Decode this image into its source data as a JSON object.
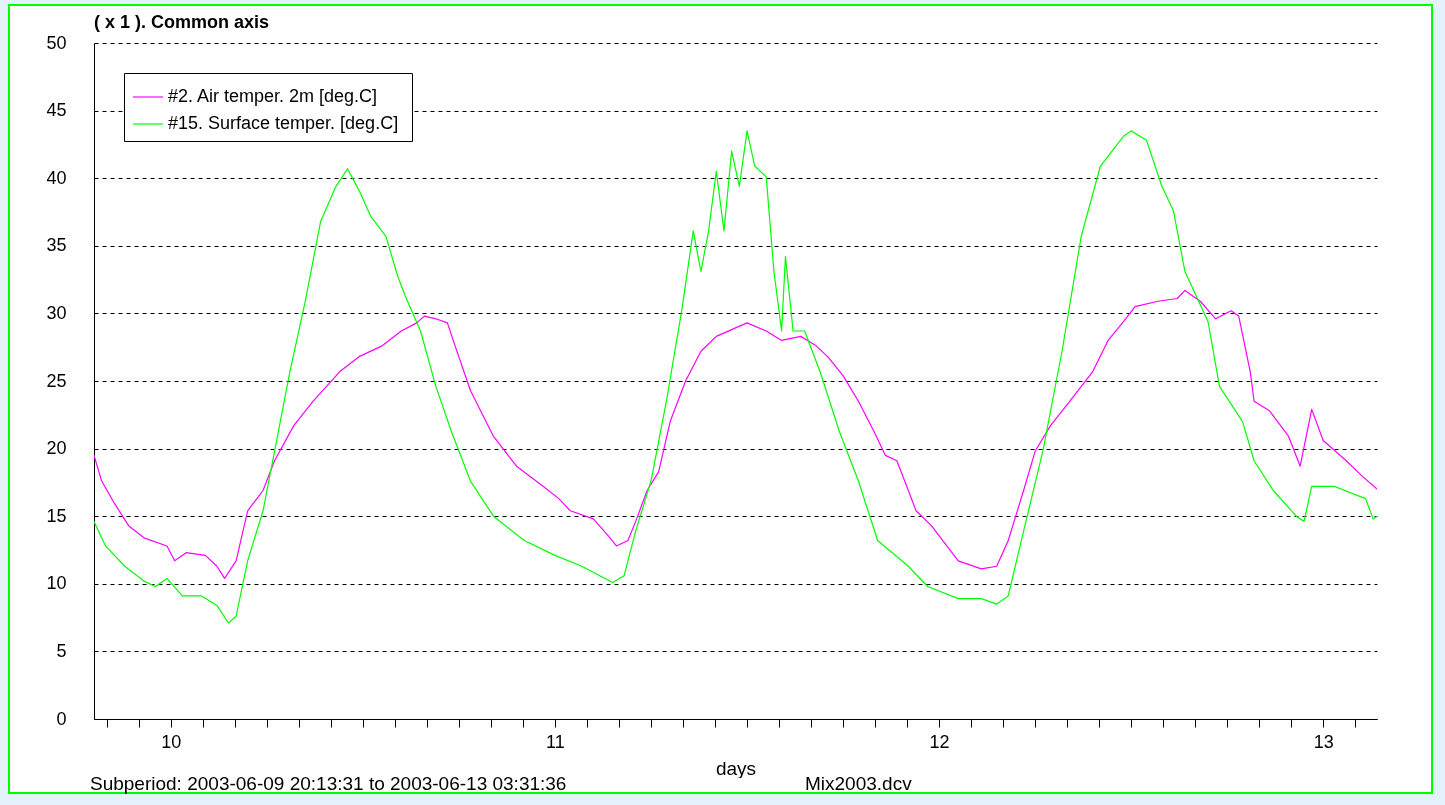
{
  "chart_data": {
    "type": "line",
    "title": "( x 1 ). Common axis",
    "xlabel": "days",
    "annotations": [
      "Subperiod: 2003-06-09 20:13:31 to 2003-06-13 03:31:36",
      "Mix2003.dcv"
    ],
    "xlim": [
      9.8,
      13.14
    ],
    "ylim": [
      0,
      50
    ],
    "yticks": [
      0,
      5,
      10,
      15,
      20,
      25,
      30,
      35,
      40,
      45,
      50
    ],
    "xticks": [
      {
        "value": 9.833,
        "label": null
      },
      {
        "value": 9.917,
        "label": null
      },
      10,
      {
        "value": 10.083,
        "label": null
      },
      {
        "value": 10.167,
        "label": null
      },
      {
        "value": 10.25,
        "label": null
      },
      {
        "value": 10.333,
        "label": null
      },
      {
        "value": 10.417,
        "label": null
      },
      {
        "value": 10.5,
        "label": null
      },
      {
        "value": 10.583,
        "label": null
      },
      {
        "value": 10.667,
        "label": null
      },
      {
        "value": 10.75,
        "label": null
      },
      {
        "value": 10.833,
        "label": null
      },
      {
        "value": 10.917,
        "label": null
      },
      11,
      {
        "value": 11.083,
        "label": null
      },
      {
        "value": 11.167,
        "label": null
      },
      {
        "value": 11.25,
        "label": null
      },
      {
        "value": 11.333,
        "label": null
      },
      {
        "value": 11.417,
        "label": null
      },
      {
        "value": 11.5,
        "label": null
      },
      {
        "value": 11.583,
        "label": null
      },
      {
        "value": 11.667,
        "label": null
      },
      {
        "value": 11.75,
        "label": null
      },
      {
        "value": 11.833,
        "label": null
      },
      {
        "value": 11.917,
        "label": null
      },
      12,
      {
        "value": 12.083,
        "label": null
      },
      {
        "value": 12.167,
        "label": null
      },
      {
        "value": 12.25,
        "label": null
      },
      {
        "value": 12.333,
        "label": null
      },
      {
        "value": 12.417,
        "label": null
      },
      {
        "value": 12.5,
        "label": null
      },
      {
        "value": 12.583,
        "label": null
      },
      {
        "value": 12.667,
        "label": null
      },
      {
        "value": 12.75,
        "label": null
      },
      {
        "value": 12.833,
        "label": null
      },
      {
        "value": 12.917,
        "label": null
      },
      13,
      {
        "value": 13.083,
        "label": null
      }
    ],
    "grid": "y",
    "legend": "top left",
    "line_style": "solid",
    "series": [
      {
        "name": "#2.  Air temper. 2m [deg.C]",
        "color": "#ff00ff",
        "x": [
          9.8,
          9.82,
          9.85,
          9.89,
          9.93,
          9.99,
          10.01,
          10.04,
          10.09,
          10.12,
          10.14,
          10.17,
          10.2,
          10.24,
          10.27,
          10.32,
          10.37,
          10.44,
          10.49,
          10.55,
          10.6,
          10.64,
          10.66,
          10.69,
          10.72,
          10.74,
          10.78,
          10.84,
          10.9,
          10.97,
          11.01,
          11.04,
          11.1,
          11.14,
          11.16,
          11.19,
          11.21,
          11.24,
          11.27,
          11.3,
          11.34,
          11.38,
          11.42,
          11.46,
          11.5,
          11.55,
          11.59,
          11.64,
          11.68,
          11.71,
          11.75,
          11.79,
          11.83,
          11.86,
          11.89,
          11.92,
          11.94,
          11.98,
          12.02,
          12.05,
          12.11,
          12.15,
          12.18,
          12.22,
          12.25,
          12.29,
          12.34,
          12.4,
          12.44,
          12.48,
          12.51,
          12.57,
          12.62,
          12.64,
          12.68,
          12.72,
          12.76,
          12.78,
          12.81,
          12.82,
          12.86,
          12.91,
          12.94,
          12.97,
          13.0,
          13.06,
          13.1,
          13.14
        ],
        "values": [
          19.5,
          17.6,
          16.1,
          14.3,
          13.4,
          12.8,
          11.7,
          12.3,
          12.1,
          11.3,
          10.4,
          11.7,
          15.4,
          16.9,
          19.1,
          21.7,
          23.5,
          25.7,
          26.8,
          27.6,
          28.7,
          29.3,
          29.8,
          29.6,
          29.3,
          27.6,
          24.3,
          20.9,
          18.7,
          17.2,
          16.3,
          15.4,
          14.8,
          13.5,
          12.8,
          13.2,
          14.6,
          16.9,
          18.3,
          22.0,
          25.0,
          27.2,
          28.3,
          28.8,
          29.3,
          28.7,
          28.0,
          28.3,
          27.6,
          26.8,
          25.4,
          23.5,
          21.3,
          19.5,
          19.1,
          16.9,
          15.4,
          14.3,
          12.8,
          11.7,
          11.1,
          11.3,
          13.2,
          16.9,
          19.8,
          21.7,
          23.5,
          25.7,
          28.0,
          29.4,
          30.5,
          30.9,
          31.1,
          31.7,
          30.9,
          29.6,
          30.2,
          29.8,
          25.7,
          23.5,
          22.8,
          20.9,
          18.7,
          22.9,
          20.6,
          19.1,
          18.0,
          17.0
        ]
      },
      {
        "name": "#15.  Surface temper. [deg.C]",
        "color": "#00ff00",
        "x": [
          9.8,
          9.83,
          9.88,
          9.93,
          9.96,
          9.99,
          10.03,
          10.08,
          10.12,
          10.15,
          10.17,
          10.2,
          10.24,
          10.27,
          10.31,
          10.35,
          10.39,
          10.43,
          10.46,
          10.49,
          10.52,
          10.56,
          10.59,
          10.61,
          10.65,
          10.69,
          10.73,
          10.78,
          10.84,
          10.92,
          11.0,
          11.07,
          11.15,
          11.18,
          11.21,
          11.25,
          11.29,
          11.33,
          11.36,
          11.38,
          11.4,
          11.42,
          11.44,
          11.46,
          11.48,
          11.5,
          11.52,
          11.55,
          11.57,
          11.59,
          11.6,
          11.62,
          11.65,
          11.69,
          11.74,
          11.79,
          11.84,
          11.92,
          11.97,
          12.05,
          12.11,
          12.15,
          12.18,
          12.22,
          12.27,
          12.32,
          12.37,
          12.42,
          12.48,
          12.5,
          12.54,
          12.58,
          12.61,
          12.64,
          12.7,
          12.73,
          12.79,
          12.82,
          12.87,
          12.93,
          12.95,
          12.97,
          13.03,
          13.11,
          13.13,
          13.14
        ],
        "values": [
          14.6,
          12.8,
          11.3,
          10.2,
          9.8,
          10.4,
          9.1,
          9.1,
          8.4,
          7.1,
          7.6,
          11.7,
          15.4,
          19.8,
          25.7,
          30.9,
          36.8,
          39.4,
          40.7,
          39.1,
          37.2,
          35.7,
          32.8,
          31.3,
          28.7,
          24.6,
          21.3,
          17.6,
          15.0,
          13.2,
          12.1,
          11.3,
          10.1,
          10.6,
          13.9,
          17.6,
          23.5,
          30.2,
          36.1,
          33.1,
          36.1,
          40.5,
          36.1,
          42.0,
          39.4,
          43.5,
          40.9,
          40.1,
          33.1,
          28.7,
          34.2,
          28.7,
          28.7,
          25.7,
          21.3,
          17.6,
          13.2,
          11.3,
          9.8,
          8.9,
          8.9,
          8.5,
          9.1,
          13.9,
          19.8,
          27.2,
          35.7,
          40.9,
          43.1,
          43.5,
          42.8,
          39.4,
          37.6,
          33.1,
          29.4,
          24.6,
          22.0,
          19.1,
          16.9,
          15.0,
          14.6,
          17.2,
          17.2,
          16.3,
          14.8,
          15.0
        ]
      }
    ]
  }
}
